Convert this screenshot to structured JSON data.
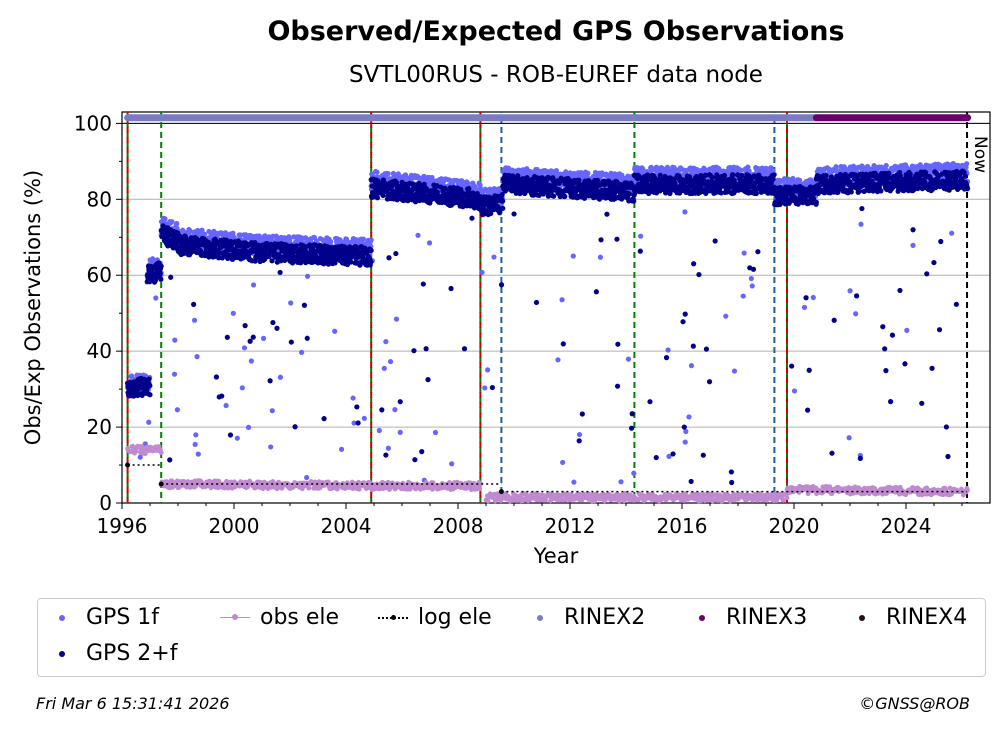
{
  "chart_data": {
    "type": "scatter",
    "title": "Observed/Expected GPS Observations",
    "subtitle": "SVTL00RUS - ROB-EUREF data node",
    "xlabel": "Year",
    "ylabel": "Obs/Exp Observations (%)",
    "xlim": [
      1996,
      2027
    ],
    "ylim": [
      0,
      103
    ],
    "xticks": [
      1996,
      2000,
      2004,
      2008,
      2012,
      2016,
      2020,
      2024
    ],
    "yticks": [
      0,
      20,
      40,
      60,
      80,
      100
    ],
    "now_label": "Now",
    "now_x": 2026.18,
    "grid": "horizontal",
    "vlines": [
      {
        "x": 1996.2,
        "color": "#008000"
      },
      {
        "x": 1996.2,
        "color": "#cc0000"
      },
      {
        "x": 1997.4,
        "color": "#008000"
      },
      {
        "x": 2004.9,
        "color": "#008000"
      },
      {
        "x": 2004.9,
        "color": "#cc0000"
      },
      {
        "x": 2008.8,
        "color": "#008000"
      },
      {
        "x": 2008.8,
        "color": "#cc0000"
      },
      {
        "x": 2009.55,
        "color": "#1f5fa0"
      },
      {
        "x": 2014.3,
        "color": "#008000"
      },
      {
        "x": 2019.3,
        "color": "#1f5fa0"
      },
      {
        "x": 2019.75,
        "color": "#008000"
      },
      {
        "x": 2019.75,
        "color": "#cc0000"
      }
    ],
    "series": [
      {
        "name": "GPS 1f",
        "color": "#6666ff",
        "segments": [
          {
            "x": [
              1996.2,
              1997.0
            ],
            "y": [
              31,
              32
            ]
          },
          {
            "x": [
              1996.9,
              1997.4
            ],
            "y": [
              62,
              62
            ]
          },
          {
            "x": [
              1997.4,
              1998.0
            ],
            "y": [
              73,
              71
            ]
          },
          {
            "x": [
              1998.0,
              2001.0
            ],
            "y": [
              70,
              68
            ]
          },
          {
            "x": [
              2001.0,
              2004.9
            ],
            "y": [
              68,
              67
            ]
          },
          {
            "x": [
              2004.9,
              2008.8
            ],
            "y": [
              85,
              82
            ]
          },
          {
            "x": [
              2008.8,
              2009.6
            ],
            "y": [
              80,
              81
            ]
          },
          {
            "x": [
              2009.6,
              2014.3
            ],
            "y": [
              86,
              84
            ]
          },
          {
            "x": [
              2014.3,
              2019.3
            ],
            "y": [
              86,
              86
            ]
          },
          {
            "x": [
              2019.3,
              2020.8
            ],
            "y": [
              83,
              83
            ]
          },
          {
            "x": [
              2020.8,
              2026.2
            ],
            "y": [
              86,
              87
            ]
          }
        ]
      },
      {
        "name": "GPS 2+f",
        "color": "#00008b",
        "segments": [
          {
            "x": [
              1996.2,
              1997.0
            ],
            "y": [
              30,
              31
            ]
          },
          {
            "x": [
              1996.9,
              1997.4
            ],
            "y": [
              60,
              61
            ]
          },
          {
            "x": [
              1997.4,
              1998.0
            ],
            "y": [
              71,
              69
            ]
          },
          {
            "x": [
              1998.0,
              2001.0
            ],
            "y": [
              68,
              66
            ]
          },
          {
            "x": [
              2001.0,
              2004.9
            ],
            "y": [
              66,
              65
            ]
          },
          {
            "x": [
              2004.9,
              2008.8
            ],
            "y": [
              83,
              80
            ]
          },
          {
            "x": [
              2008.8,
              2009.6
            ],
            "y": [
              78,
              79
            ]
          },
          {
            "x": [
              2009.6,
              2014.3
            ],
            "y": [
              84,
              82
            ]
          },
          {
            "x": [
              2014.3,
              2019.3
            ],
            "y": [
              84,
              84
            ]
          },
          {
            "x": [
              2019.3,
              2020.8
            ],
            "y": [
              81,
              81
            ]
          },
          {
            "x": [
              2020.8,
              2026.2
            ],
            "y": [
              84,
              85
            ]
          }
        ]
      },
      {
        "name": "obs ele",
        "color": "#c08ad0",
        "segments": [
          {
            "x": [
              1996.2,
              1997.4
            ],
            "y": [
              14,
              14
            ]
          },
          {
            "x": [
              1997.4,
              2004.9
            ],
            "y": [
              5,
              4.5
            ]
          },
          {
            "x": [
              2004.9,
              2008.8
            ],
            "y": [
              4.5,
              4.5
            ]
          },
          {
            "x": [
              2009.0,
              2019.75
            ],
            "y": [
              1.5,
              1.5
            ]
          },
          {
            "x": [
              2019.75,
              2026.2
            ],
            "y": [
              3.5,
              3
            ]
          }
        ]
      },
      {
        "name": "log ele",
        "color": "#000000",
        "steps": [
          {
            "x": [
              1996.2,
              1997.4
            ],
            "y": 10
          },
          {
            "x": [
              1997.4,
              2009.55
            ],
            "y": 5
          },
          {
            "x": [
              2009.55,
              2026.18
            ],
            "y": 3
          }
        ]
      },
      {
        "name": "RINEX2",
        "color": "#7b7bc4",
        "bar": {
          "x": [
            1996.2,
            2020.8
          ],
          "y": 101.5
        }
      },
      {
        "name": "RINEX3",
        "color": "#6a006a",
        "bar": {
          "x": [
            2020.8,
            2026.2
          ],
          "y": 101.5
        }
      },
      {
        "name": "RINEX4",
        "color": "#2a0a1a",
        "bar": null
      }
    ]
  },
  "legend": {
    "gps1f": "GPS 1f",
    "obsele": "obs ele",
    "logele": "log ele",
    "rinex2": "RINEX2",
    "rinex3": "RINEX3",
    "rinex4": "RINEX4",
    "gps2f": "GPS 2+f"
  },
  "footer": {
    "timestamp": "Fri Mar  6 15:31:41 2026",
    "copyright": "©GNSS@ROB"
  }
}
